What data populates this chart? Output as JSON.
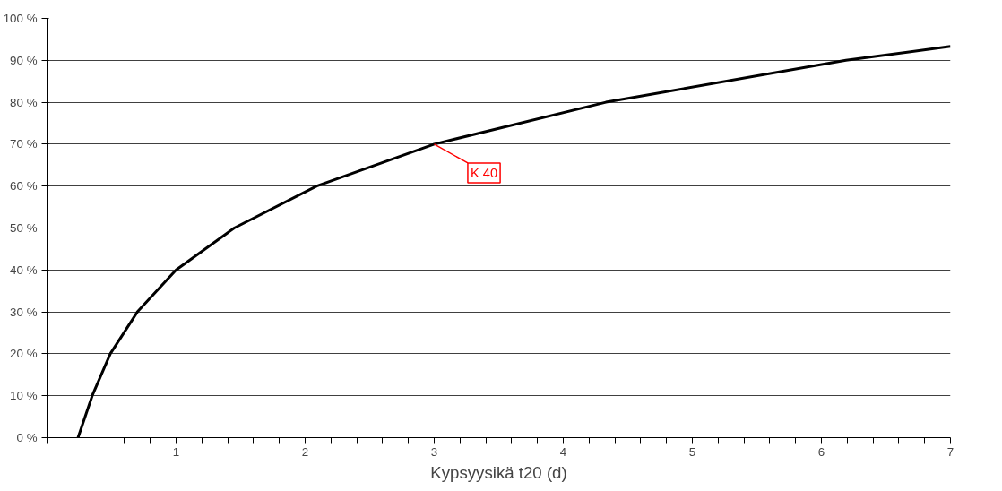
{
  "chart_data": {
    "type": "line",
    "xlabel": "Kypsyysikä t20 (d)",
    "x": [
      0.24,
      0.35,
      0.49,
      0.7,
      1.0,
      1.45,
      2.09,
      3.0,
      4.33,
      6.19,
      7.0
    ],
    "series": [
      {
        "color": "#000000",
        "values": [
          0,
          10,
          20,
          30,
          40,
          50,
          60,
          70,
          80,
          90,
          93.3
        ]
      }
    ],
    "xlim": [
      0,
      7
    ],
    "ylim": [
      0,
      100
    ],
    "xticks": [
      {
        "value": 0,
        "label": null
      },
      {
        "value": 0.2,
        "label": null
      },
      {
        "value": 0.4,
        "label": null
      },
      {
        "value": 0.6,
        "label": null
      },
      {
        "value": 0.8,
        "label": null
      },
      1,
      {
        "value": 1.2,
        "label": null
      },
      {
        "value": 1.4,
        "label": null
      },
      {
        "value": 1.6,
        "label": null
      },
      {
        "value": 1.8,
        "label": null
      },
      2,
      {
        "value": 2.2,
        "label": null
      },
      {
        "value": 2.4,
        "label": null
      },
      {
        "value": 2.6,
        "label": null
      },
      {
        "value": 2.8,
        "label": null
      },
      3,
      {
        "value": 3.2,
        "label": null
      },
      {
        "value": 3.4,
        "label": null
      },
      {
        "value": 3.6,
        "label": null
      },
      {
        "value": 3.8,
        "label": null
      },
      4,
      {
        "value": 4.2,
        "label": null
      },
      {
        "value": 4.4,
        "label": null
      },
      {
        "value": 4.6,
        "label": null
      },
      {
        "value": 4.8,
        "label": null
      },
      5,
      {
        "value": 5.2,
        "label": null
      },
      {
        "value": 5.4,
        "label": null
      },
      {
        "value": 5.6,
        "label": null
      },
      {
        "value": 5.8,
        "label": null
      },
      6,
      {
        "value": 6.2,
        "label": null
      },
      {
        "value": 6.4,
        "label": null
      },
      {
        "value": 6.6,
        "label": null
      },
      {
        "value": 6.8,
        "label": null
      },
      7
    ],
    "yticks": [
      {
        "value": 0,
        "label": "0 %"
      },
      {
        "value": 10,
        "label": "10 %"
      },
      {
        "value": 20,
        "label": "20 %"
      },
      {
        "value": 30,
        "label": "30 %"
      },
      {
        "value": 40,
        "label": "40 %"
      },
      {
        "value": 50,
        "label": "50 %"
      },
      {
        "value": 60,
        "label": "60 %"
      },
      {
        "value": 70,
        "label": "70 %"
      },
      {
        "value": 80,
        "label": "80 %"
      },
      {
        "value": 90,
        "label": "90 %"
      },
      {
        "value": 100,
        "label": "100 %"
      }
    ],
    "grid": "y",
    "line_style": "solid",
    "annotations": [
      {
        "text": "K 40",
        "x": 3,
        "y": 70
      }
    ]
  }
}
